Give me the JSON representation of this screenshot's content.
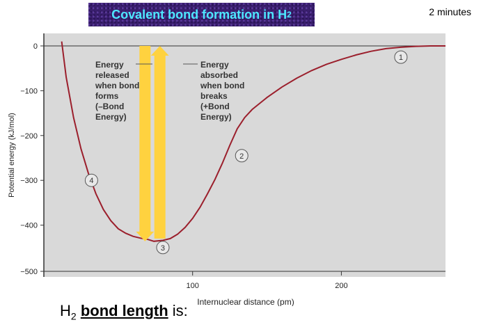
{
  "header": {
    "title_main": "Covalent bond formation in H",
    "title_sub": "2",
    "timer": "2 minutes"
  },
  "chart_data": {
    "type": "line",
    "xlabel": "Internuclear distance (pm)",
    "ylabel": "Potential energy (kJ/mol)",
    "xlim": [
      0,
      270
    ],
    "ylim": [
      -500,
      0
    ],
    "x_ticks": [
      100,
      200
    ],
    "y_ticks": [
      0,
      -100,
      -200,
      -300,
      -400,
      -500
    ],
    "series": [
      {
        "x": [
          12,
          15,
          20,
          25,
          30,
          35,
          40,
          45,
          50,
          55,
          60,
          65,
          70,
          74,
          80,
          85,
          90,
          95,
          100,
          105,
          110,
          115,
          120,
          125,
          130,
          135,
          140,
          150,
          160,
          170,
          180,
          190,
          200,
          210,
          220,
          230,
          240,
          250,
          260,
          270
        ],
        "y": [
          10,
          -70,
          -160,
          -230,
          -285,
          -330,
          -365,
          -390,
          -408,
          -418,
          -425,
          -429,
          -432,
          -436,
          -434,
          -430,
          -420,
          -405,
          -385,
          -360,
          -330,
          -298,
          -262,
          -222,
          -185,
          -160,
          -142,
          -115,
          -92,
          -72,
          -55,
          -41,
          -30,
          -20,
          -12,
          -6,
          -3,
          -1,
          0,
          0
        ]
      }
    ],
    "markers": [
      {
        "label": "1",
        "x": 240,
        "y": -25
      },
      {
        "label": "2",
        "x": 133,
        "y": -245
      },
      {
        "label": "3",
        "x": 80,
        "y": -450
      },
      {
        "label": "4",
        "x": 32,
        "y": -300
      }
    ],
    "annotations": {
      "released": [
        "Energy",
        "released",
        "when bond",
        "forms",
        "(–Bond",
        "Energy)"
      ],
      "absorbed": [
        "Energy",
        "absorbed",
        "when bond",
        "breaks",
        "(+Bond",
        "Energy)"
      ]
    },
    "colors": {
      "curve": "#9b1f2c",
      "arrow": "#ffd23f",
      "plot_bg": "#d9d9d9"
    },
    "grid": false
  },
  "question": {
    "prefix": "H",
    "sub": "2",
    "bold": "bond length",
    "suffix": " is:"
  }
}
